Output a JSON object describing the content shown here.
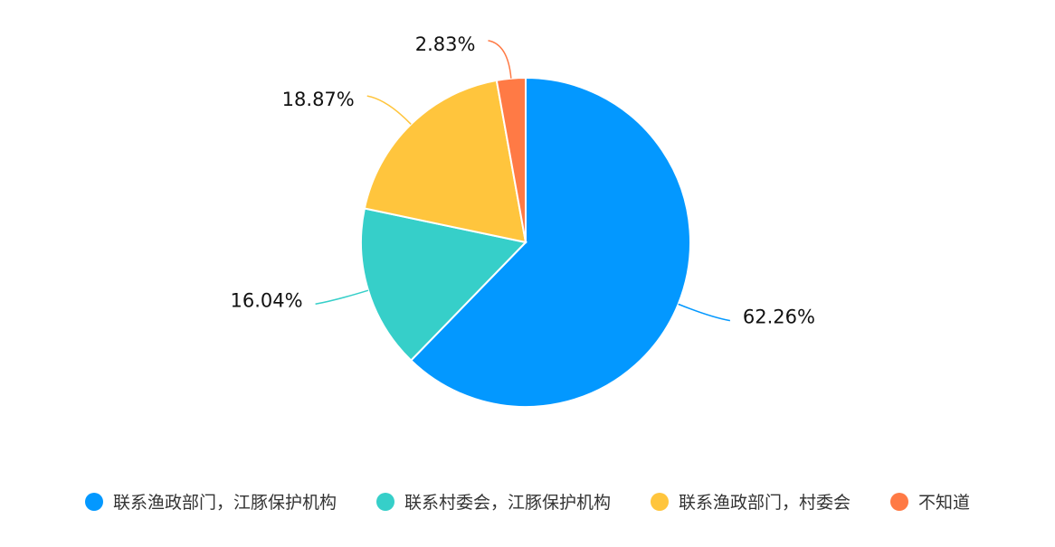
{
  "chart_data": {
    "type": "pie",
    "start_angle": "top",
    "direction": "clockwise",
    "slices": [
      {
        "name": "联系渔政部门，江豚保护机构",
        "value": 62.26,
        "label": "62.26%",
        "color": "#0398FF"
      },
      {
        "name": "联系村委会，江豚保护机构",
        "value": 16.04,
        "label": "16.04%",
        "color": "#36CFC9"
      },
      {
        "name": "联系渔政部门，村委会",
        "value": 18.87,
        "label": "18.87%",
        "color": "#FFC53D"
      },
      {
        "name": "不知道",
        "value": 2.83,
        "label": "2.83%",
        "color": "#FF7A45"
      }
    ],
    "legend_position": "bottom"
  }
}
